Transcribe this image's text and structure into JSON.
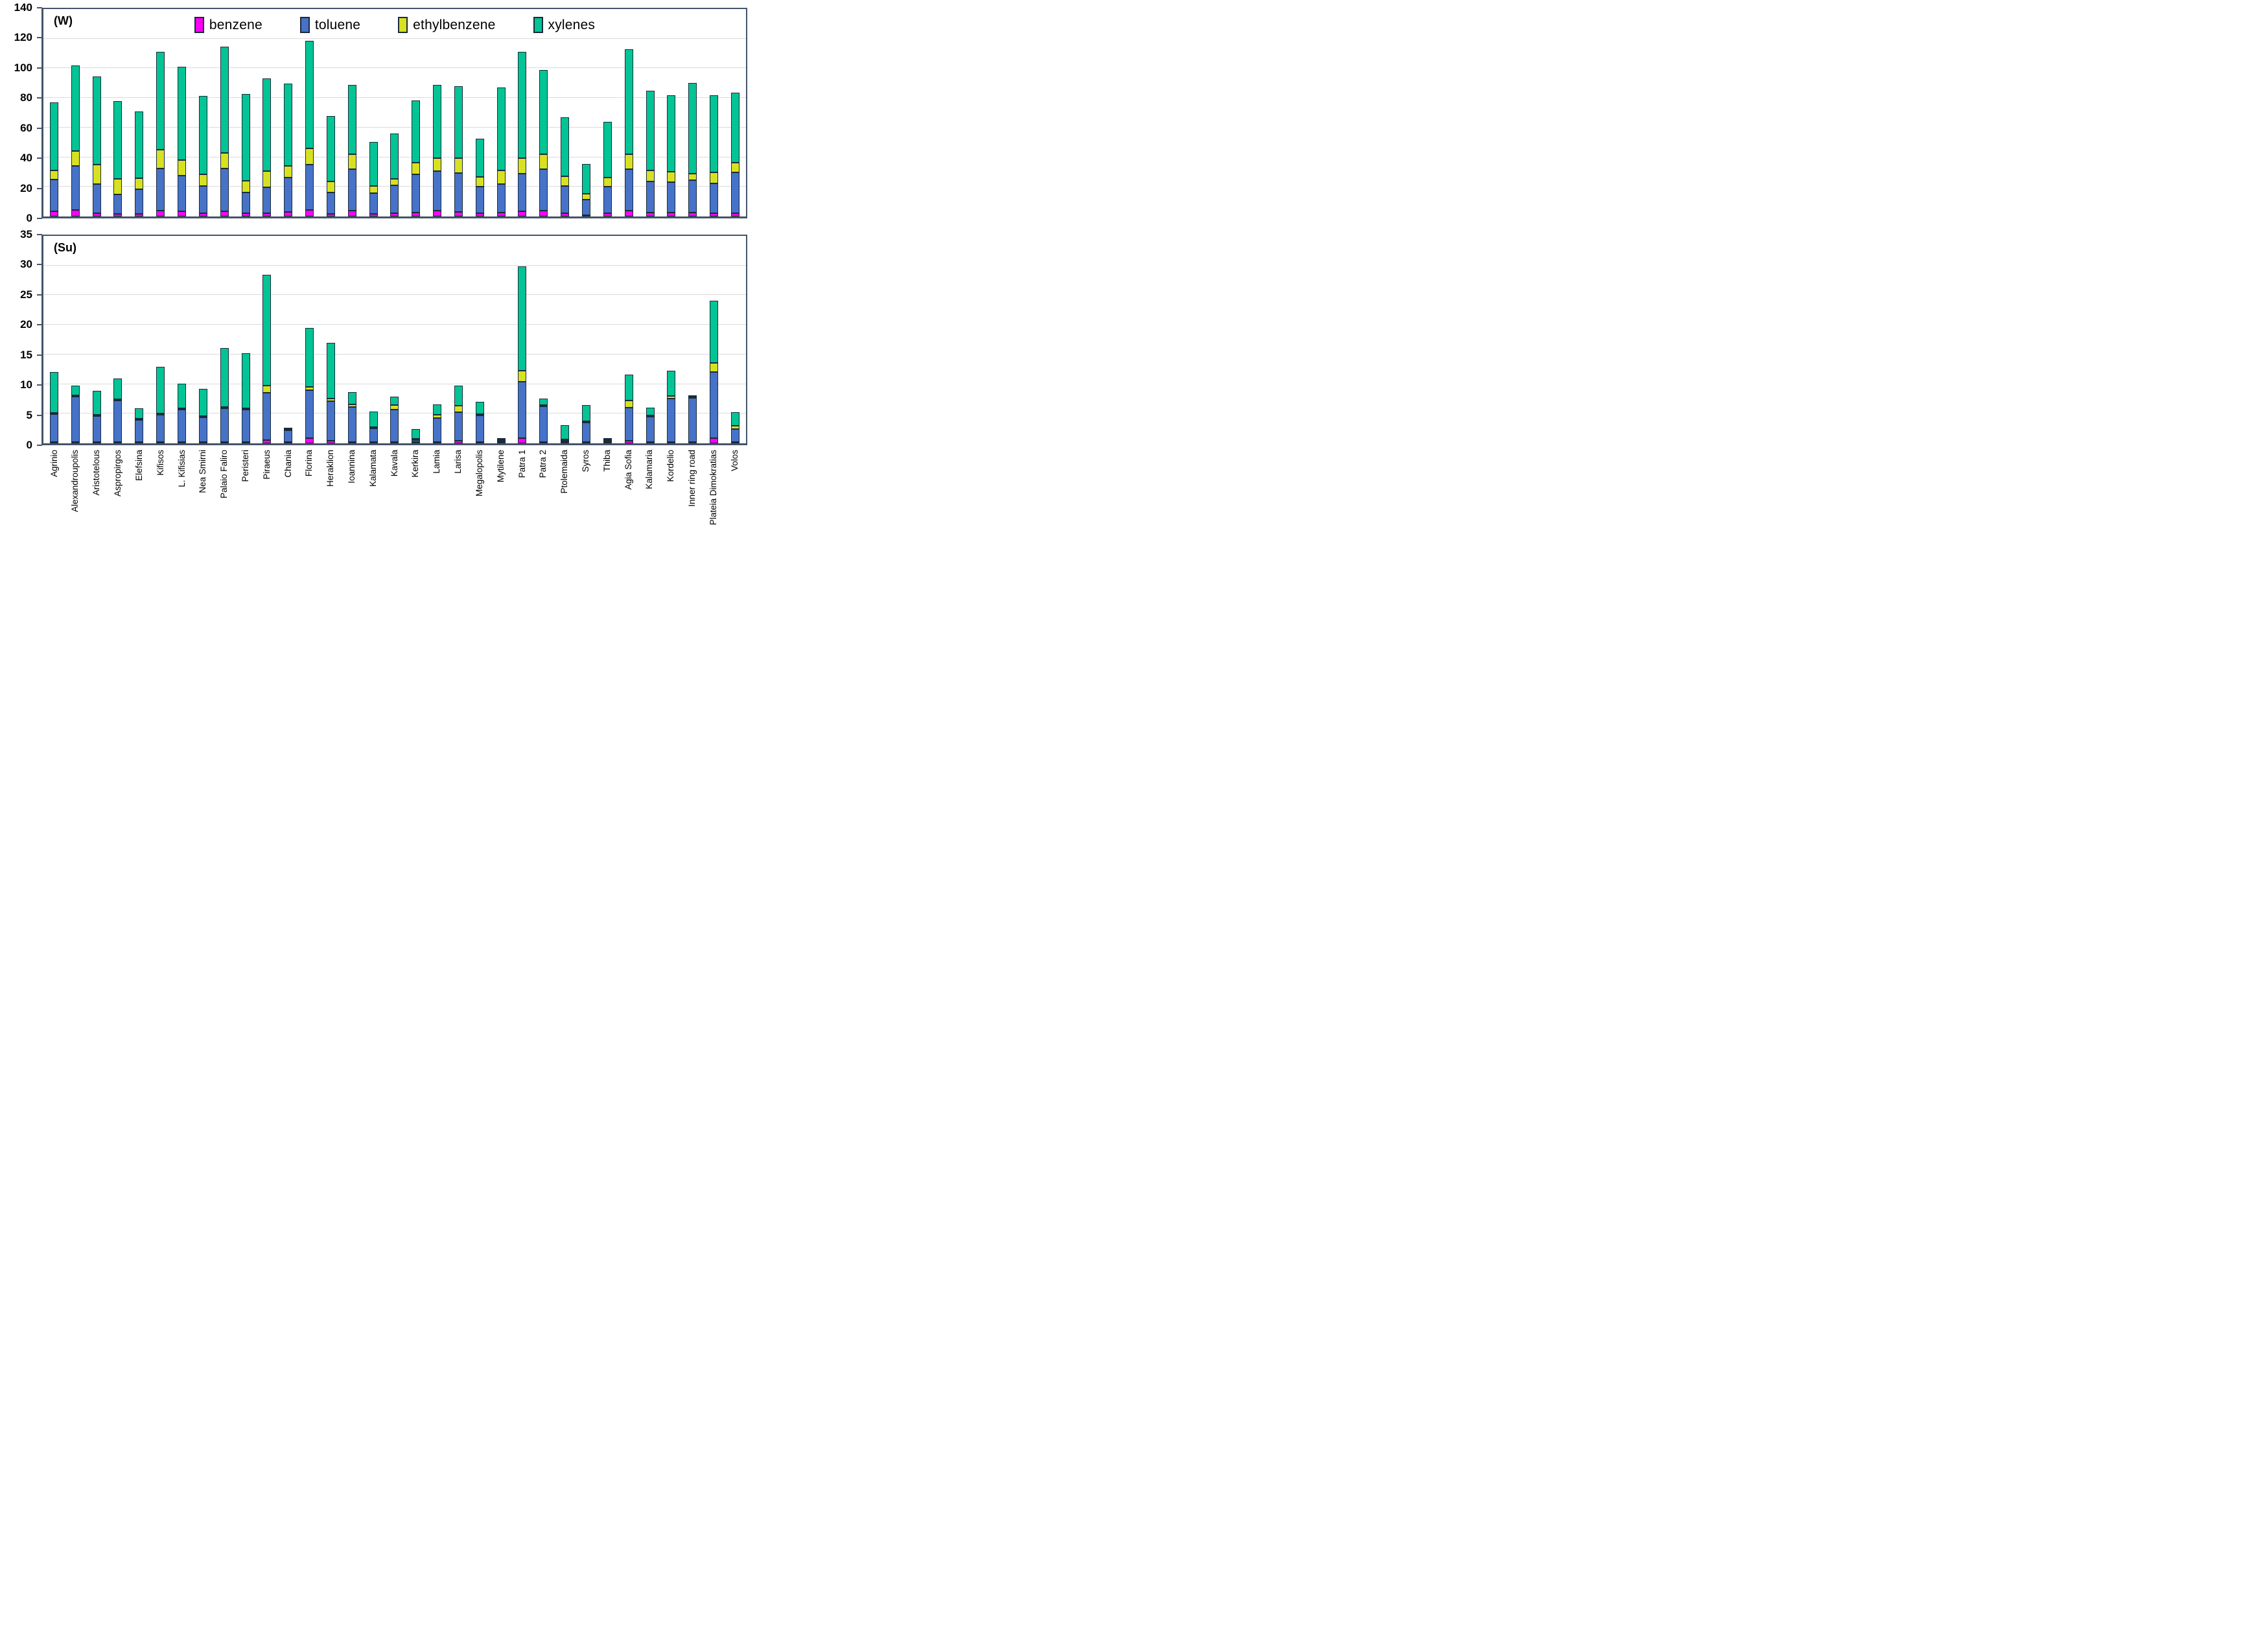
{
  "figure": {
    "type": "stacked-bar-figure",
    "panel_w_label": "(W)",
    "panel_su_label": "(Su)"
  },
  "legend": {
    "position": "top-inside-first-panel",
    "items": [
      {
        "label": "benzene",
        "color": "#FB00F5"
      },
      {
        "label": "toluene",
        "color": "#4673C8"
      },
      {
        "label": "ethylbenzene",
        "color": "#D7E121"
      },
      {
        "label": "xylenes",
        "color": "#02C494"
      }
    ]
  },
  "style": {
    "segment_border": "#1B2A3A",
    "panel_border": "#44546A",
    "gridline": "#DBDBDB",
    "background": "#FFFFFF"
  },
  "chart_data": [
    {
      "type": "bar",
      "stacked": true,
      "title": "(W)",
      "xlabel": "",
      "ylabel": "",
      "ylim": [
        0,
        140
      ],
      "yticks": [
        0,
        20,
        40,
        60,
        80,
        100,
        120,
        140
      ],
      "grid": true,
      "categories": [
        "Agrinio",
        "Alexandroupolis",
        "Aristotelous",
        "Aspropirgos",
        "Elefsina",
        "Kifisos",
        "L. Kifisias",
        "Nea Smirni",
        "Palaio Faliro",
        "Peristeri",
        "Piraeus",
        "Chania",
        "Florina",
        "Heraklion",
        "Ioannina",
        "Kalamata",
        "Kavala",
        "Kerkira",
        "Lamia",
        "Larisa",
        "Megalopolis",
        "Mytilene",
        "Patra 1",
        "Patra 2",
        "Ptolemaida",
        "Syros",
        "Thiba",
        "Agia Sofia",
        "Kalamaria",
        "Kordelio",
        "Inner ring road",
        "Plateia Dimokratias",
        "Volos"
      ],
      "series": [
        {
          "name": "benzene",
          "values": [
            3.6,
            4.4,
            2.4,
            1.7,
            1.8,
            4.1,
            3.5,
            2.4,
            3.7,
            2.1,
            2.3,
            3.0,
            4.6,
            1.9,
            3.9,
            1.7,
            2.3,
            2.5,
            3.9,
            3.2,
            2.3,
            2.6,
            3.7,
            4.0,
            2.2,
            0.6,
            2.0,
            4.0,
            2.8,
            2.5,
            2.5,
            2.4,
            2.4
          ]
        },
        {
          "name": "toluene",
          "values": [
            21.4,
            29.8,
            19.6,
            13.0,
            16.4,
            28.4,
            24.0,
            18.1,
            28.8,
            13.9,
            17.3,
            23.1,
            30.6,
            14.1,
            28.0,
            14.1,
            18.8,
            25.9,
            26.8,
            26.3,
            17.9,
            19.5,
            25.1,
            28.1,
            18.4,
            10.3,
            18.0,
            27.9,
            21.0,
            20.6,
            21.9,
            19.9,
            27.2
          ]
        },
        {
          "name": "ethylbenzene",
          "values": [
            6.0,
            9.9,
            13.0,
            10.7,
            7.6,
            12.5,
            10.5,
            8.0,
            10.5,
            8.0,
            10.9,
            7.9,
            10.8,
            7.8,
            10.0,
            4.6,
            4.4,
            7.8,
            8.5,
            10.0,
            6.6,
            8.9,
            10.6,
            10.1,
            6.7,
            4.1,
            6.3,
            10.1,
            7.4,
            7.2,
            4.6,
            7.4,
            6.6
          ]
        },
        {
          "name": "xylenes",
          "values": [
            46.0,
            57.9,
            59.5,
            52.6,
            45.2,
            66.0,
            63.0,
            53.0,
            71.5,
            58.5,
            62.5,
            55.5,
            72.5,
            44.2,
            47.1,
            30.1,
            30.5,
            42.3,
            49.8,
            48.5,
            25.7,
            56.0,
            71.6,
            56.8,
            39.7,
            20.0,
            37.7,
            71.0,
            53.8,
            51.7,
            61.0,
            52.3,
            47.3
          ]
        }
      ]
    },
    {
      "type": "bar",
      "stacked": true,
      "title": "(Su)",
      "xlabel": "",
      "ylabel": "",
      "ylim": [
        0,
        35
      ],
      "yticks": [
        0,
        5,
        10,
        15,
        20,
        25,
        30,
        35
      ],
      "grid": true,
      "categories": [
        "Agrinio",
        "Alexandroupolis",
        "Aristotelous",
        "Aspropirgos",
        "Elefsina",
        "Kifisos",
        "L. Kifisias",
        "Nea Smirni",
        "Palaio Faliro",
        "Peristeri",
        "Piraeus",
        "Chania",
        "Florina",
        "Heraklion",
        "Ioannina",
        "Kalamata",
        "Kavala",
        "Kerkira",
        "Lamia",
        "Larisa",
        "Megalopolis",
        "Mytilene",
        "Patra 1",
        "Patra 2",
        "Ptolemaida",
        "Syros",
        "Thiba",
        "Agia Sofia",
        "Kalamaria",
        "Kordelio",
        "Inner ring road",
        "Plateia Dimokratias",
        "Volos"
      ],
      "series": [
        {
          "name": "benzene",
          "values": [
            0.2,
            0.25,
            0.2,
            0.1,
            0.1,
            0.05,
            0.15,
            0.1,
            0.05,
            0.2,
            0.5,
            0.05,
            0.85,
            0.45,
            0.1,
            0.05,
            0.1,
            0.2,
            0.05,
            0.4,
            0.05,
            0.05,
            0.9,
            0.15,
            0.05,
            0.05,
            0.05,
            0.4,
            0.15,
            0.25,
            0.15,
            0.9,
            0.05
          ]
        },
        {
          "name": "toluene",
          "values": [
            4.7,
            7.65,
            4.4,
            7.0,
            3.7,
            4.55,
            5.45,
            4.2,
            5.65,
            5.5,
            8.0,
            2.0,
            8.15,
            6.65,
            5.9,
            2.35,
            5.5,
            0.3,
            4.05,
            4.9,
            4.45,
            0.25,
            9.5,
            6.05,
            0.25,
            3.25,
            0.25,
            5.6,
            4.25,
            7.25,
            7.45,
            11.1,
            2.15
          ]
        },
        {
          "name": "ethylbenzene",
          "values": [
            0.1,
            0.1,
            0.1,
            0.1,
            0.1,
            0.1,
            0.1,
            0.1,
            0.1,
            0.1,
            1.2,
            0.15,
            0.5,
            0.4,
            0.5,
            0.1,
            0.7,
            0.05,
            0.5,
            1.0,
            0.1,
            0.05,
            1.8,
            0.15,
            0.05,
            0.1,
            0.05,
            1.2,
            0.1,
            0.5,
            0.1,
            1.6,
            0.6
          ]
        },
        {
          "name": "xylenes",
          "values": [
            6.9,
            1.6,
            4.0,
            3.5,
            1.8,
            7.9,
            4.2,
            4.6,
            10.0,
            9.3,
            18.7,
            0.2,
            10.0,
            9.5,
            2.0,
            2.6,
            1.5,
            1.65,
            1.8,
            3.4,
            2.1,
            0.2,
            17.7,
            1.05,
            2.35,
            2.8,
            0.15,
            4.4,
            1.3,
            4.3,
            0.2,
            10.5,
            2.3
          ]
        }
      ]
    }
  ]
}
